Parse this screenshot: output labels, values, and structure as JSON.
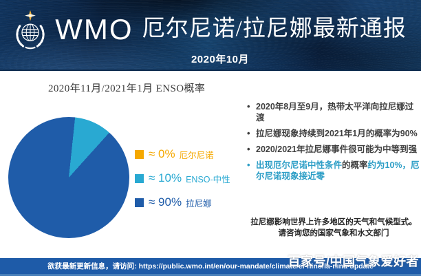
{
  "header": {
    "org": "WMO",
    "title": "厄尔尼诺/拉尼娜最新通报",
    "subtitle": "2020年10月"
  },
  "chart": {
    "title": "2020年11月/2021年1月 ENSO概率",
    "legend": [
      {
        "pct": "≈ 0%",
        "label": "厄尔尼诺",
        "color": "#F5A800"
      },
      {
        "pct": "≈ 10%",
        "label": "ENSO-中性",
        "color": "#29A9D2"
      },
      {
        "pct": "≈ 90%",
        "label": "拉尼娜",
        "color": "#1F5CA9"
      }
    ]
  },
  "chart_data": {
    "type": "pie",
    "title": "2020年11月/2021年1月 ENSO概率",
    "slices": [
      {
        "label": "厄尔尼诺",
        "value": 0,
        "color": "#F5A800"
      },
      {
        "label": "ENSO-中性",
        "value": 10,
        "color": "#29A9D2"
      },
      {
        "label": "拉尼娜",
        "value": 90,
        "color": "#1F5CA9"
      }
    ],
    "start_angle_deg": 6,
    "legend_position": "right"
  },
  "bullets": [
    {
      "segments": [
        {
          "text": "2020年8月至9月，热带太平洋向拉尼娜过渡",
          "tone": "dark"
        }
      ]
    },
    {
      "segments": [
        {
          "text": "拉尼娜现象持续到2021年1月的概率为90%",
          "tone": "dark"
        }
      ]
    },
    {
      "segments": [
        {
          "text": "2020/2021年拉尼娜事件很可能为中等到强",
          "tone": "dark"
        }
      ]
    },
    {
      "segments": [
        {
          "text": "出现厄尔尼诺中性条件",
          "tone": "teal"
        },
        {
          "text": "的概率",
          "tone": "dark"
        },
        {
          "text": "约为10%，厄尔尼诺现象接近零",
          "tone": "teal"
        }
      ]
    }
  ],
  "note": "拉尼娜影响世界上许多地区的天气和气候型式。请咨询您的国家气象和水文部门",
  "footer": {
    "label": "欲获最新更新信息，请访问:",
    "url": "https://public.wmo.int/en/our-mandate/climate/el-nino/la-nina-update"
  },
  "watermark": "百家号/中国气象爱好者",
  "colors": {
    "dark": "#3F3F3F",
    "teal": "#2D9EC6",
    "footer_bar": "#1E5BA8"
  }
}
